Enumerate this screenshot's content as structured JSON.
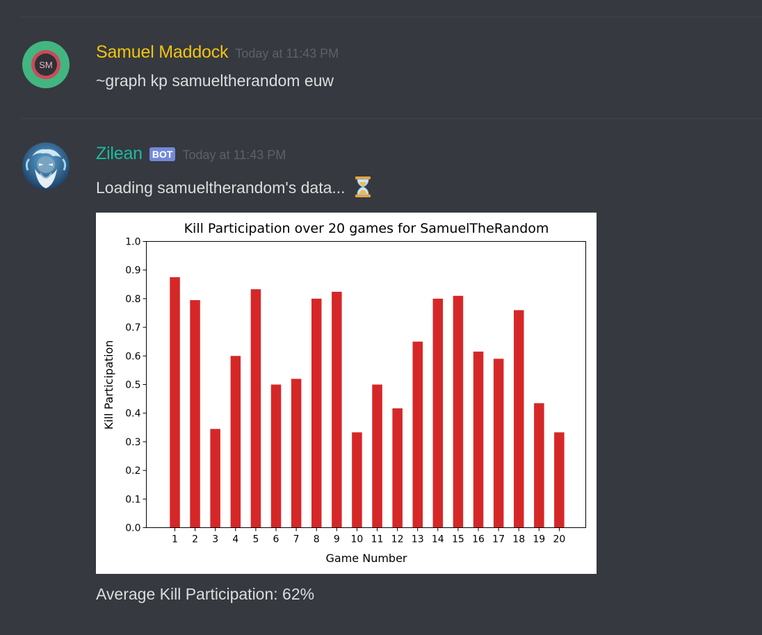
{
  "messages": [
    {
      "author": "Samuel Maddock",
      "author_color": "#f1c40f",
      "avatar_initials": "SM",
      "timestamp": "Today at 11:43 PM",
      "text": "~graph kp samueltherandom euw"
    },
    {
      "author": "Zilean",
      "author_color": "#1abc9c",
      "bot_tag": "BOT",
      "timestamp": "Today at 11:43 PM",
      "text": "Loading samueltherandom's data...",
      "emoji": "hourglass-icon",
      "footer_text": "Average Kill Participation: 62%"
    }
  ],
  "colors": {
    "background": "#36393f",
    "bar_color": "#d62728",
    "bot_tag": "#7289da"
  },
  "chart_data": {
    "type": "bar",
    "title": "Kill Participation over 20 games for SamuelTheRandom",
    "xlabel": "Game Number",
    "ylabel": "Kill Participation",
    "categories": [
      "1",
      "2",
      "3",
      "4",
      "5",
      "6",
      "7",
      "8",
      "9",
      "10",
      "11",
      "12",
      "13",
      "14",
      "15",
      "16",
      "17",
      "18",
      "19",
      "20"
    ],
    "values": [
      0.875,
      0.795,
      0.345,
      0.6,
      0.833,
      0.5,
      0.52,
      0.8,
      0.824,
      0.333,
      0.5,
      0.417,
      0.65,
      0.8,
      0.81,
      0.615,
      0.59,
      0.76,
      0.435,
      0.333
    ],
    "ylim": [
      0,
      1.0
    ],
    "yticks": [
      "0.0",
      "0.1",
      "0.2",
      "0.3",
      "0.4",
      "0.5",
      "0.6",
      "0.7",
      "0.8",
      "0.9",
      "1.0"
    ],
    "grid": false,
    "legend": "none"
  }
}
